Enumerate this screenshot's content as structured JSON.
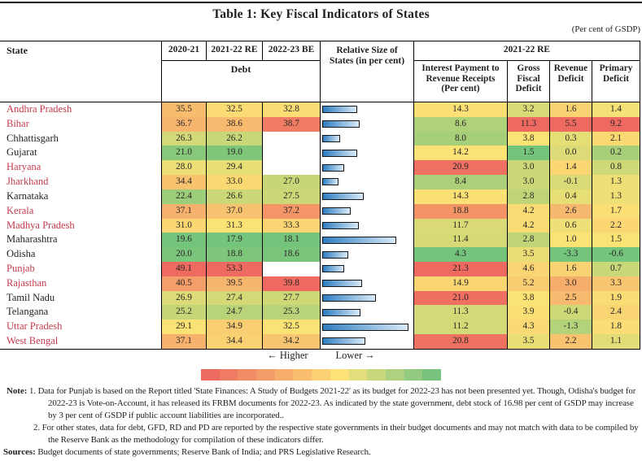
{
  "title": "Table 1: Key Fiscal Indicators of States",
  "unit_note": "(Per cent of GSDP)",
  "chart_data": {
    "type": "table",
    "title": "Table 1: Key Fiscal Indicators of States",
    "unit": "Per cent of GSDP",
    "header": {
      "state": "State",
      "years": [
        "2020-21",
        "2021-22 RE",
        "2022-23 BE"
      ],
      "debt": "Debt",
      "relative_size": "Relative Size of States (in per cent)",
      "group_2021_22": "2021-22 RE",
      "sub": [
        "Interest Payment to Revenue Receipts (Per cent)",
        "Gross Fiscal Deficit",
        "Revenue Deficit",
        "Primary Deficit"
      ]
    },
    "rows": [
      {
        "state": "Andhra Pradesh",
        "red_label": true,
        "debt_2020_21": 35.5,
        "debt_2021_22_re": 32.5,
        "debt_2022_23_be": 32.8,
        "relative_size": 4.8,
        "ip_rr": 14.3,
        "gfd": 3.2,
        "rd": 1.6,
        "pd": 1.4
      },
      {
        "state": "Bihar",
        "red_label": true,
        "debt_2020_21": 36.7,
        "debt_2021_22_re": 38.6,
        "debt_2022_23_be": 38.7,
        "relative_size": 5.1,
        "ip_rr": 8.6,
        "gfd": 11.3,
        "rd": 5.5,
        "pd": 9.2
      },
      {
        "state": "Chhattisgarh",
        "red_label": false,
        "debt_2020_21": 26.3,
        "debt_2021_22_re": 26.2,
        "debt_2022_23_be": null,
        "relative_size": 2.4,
        "ip_rr": 8.0,
        "gfd": 3.8,
        "rd": 0.3,
        "pd": 2.1
      },
      {
        "state": "Gujarat",
        "red_label": false,
        "debt_2020_21": 21.0,
        "debt_2021_22_re": 19.0,
        "debt_2022_23_be": null,
        "relative_size": 4.7,
        "ip_rr": 14.2,
        "gfd": 1.5,
        "rd": 0.0,
        "pd": 0.2
      },
      {
        "state": "Haryana",
        "red_label": true,
        "debt_2020_21": 28.0,
        "debt_2021_22_re": 29.4,
        "debt_2022_23_be": null,
        "relative_size": 3.0,
        "ip_rr": 20.9,
        "gfd": 3.0,
        "rd": 1.4,
        "pd": 0.8
      },
      {
        "state": "Jharkhand",
        "red_label": true,
        "debt_2020_21": 34.4,
        "debt_2021_22_re": 33.0,
        "debt_2022_23_be": 27.0,
        "relative_size": 2.2,
        "ip_rr": 8.4,
        "gfd": 3.0,
        "rd": -0.1,
        "pd": 1.3
      },
      {
        "state": "Karnataka",
        "red_label": false,
        "debt_2020_21": 22.4,
        "debt_2021_22_re": 26.6,
        "debt_2022_23_be": 27.5,
        "relative_size": 5.6,
        "ip_rr": 14.3,
        "gfd": 2.8,
        "rd": 0.4,
        "pd": 1.3
      },
      {
        "state": "Kerala",
        "red_label": true,
        "debt_2020_21": 37.1,
        "debt_2021_22_re": 37.0,
        "debt_2022_23_be": 37.2,
        "relative_size": 3.9,
        "ip_rr": 18.8,
        "gfd": 4.2,
        "rd": 2.6,
        "pd": 1.7
      },
      {
        "state": "Madhya Pradesh",
        "red_label": true,
        "debt_2020_21": 31.0,
        "debt_2021_22_re": 31.3,
        "debt_2022_23_be": 33.3,
        "relative_size": 5.0,
        "ip_rr": 11.7,
        "gfd": 4.2,
        "rd": 0.6,
        "pd": 2.2
      },
      {
        "state": "Maharashtra",
        "red_label": false,
        "debt_2020_21": 19.6,
        "debt_2021_22_re": 17.9,
        "debt_2022_23_be": 18.1,
        "relative_size": 10.0,
        "ip_rr": 11.4,
        "gfd": 2.8,
        "rd": 1.0,
        "pd": 1.5
      },
      {
        "state": "Odisha",
        "red_label": false,
        "debt_2020_21": 20.0,
        "debt_2021_22_re": 18.8,
        "debt_2022_23_be": 18.6,
        "relative_size": 3.5,
        "ip_rr": 4.3,
        "gfd": 3.5,
        "rd": -3.3,
        "pd": -0.6
      },
      {
        "state": "Punjab",
        "red_label": true,
        "debt_2020_21": 49.1,
        "debt_2021_22_re": 53.3,
        "debt_2022_23_be": null,
        "relative_size": 3.0,
        "ip_rr": 21.3,
        "gfd": 4.6,
        "rd": 1.6,
        "pd": 0.7
      },
      {
        "state": "Rajasthan",
        "red_label": true,
        "debt_2020_21": 40.5,
        "debt_2021_22_re": 39.5,
        "debt_2022_23_be": 39.8,
        "relative_size": 5.4,
        "ip_rr": 14.9,
        "gfd": 5.2,
        "rd": 3.0,
        "pd": 3.3
      },
      {
        "state": "Tamil Nadu",
        "red_label": false,
        "debt_2020_21": 26.9,
        "debt_2021_22_re": 27.4,
        "debt_2022_23_be": 27.7,
        "relative_size": 7.3,
        "ip_rr": 21.0,
        "gfd": 3.8,
        "rd": 2.5,
        "pd": 1.9
      },
      {
        "state": "Telangana",
        "red_label": false,
        "debt_2020_21": 25.2,
        "debt_2021_22_re": 24.7,
        "debt_2022_23_be": 25.3,
        "relative_size": 5.2,
        "ip_rr": 11.3,
        "gfd": 3.9,
        "rd": -0.4,
        "pd": 2.4
      },
      {
        "state": "Uttar Pradesh",
        "red_label": true,
        "debt_2020_21": 29.1,
        "debt_2021_22_re": 34.9,
        "debt_2022_23_be": 32.5,
        "relative_size": 11.7,
        "ip_rr": 11.2,
        "gfd": 4.3,
        "rd": -1.3,
        "pd": 1.8
      },
      {
        "state": "West Bengal",
        "red_label": true,
        "debt_2020_21": 37.1,
        "debt_2021_22_re": 34.4,
        "debt_2022_23_be": 34.2,
        "relative_size": 5.9,
        "ip_rr": 20.8,
        "gfd": 3.5,
        "rd": 2.2,
        "pd": 1.1
      }
    ],
    "bar_column": {
      "label": "Relative Size of States (in per cent)",
      "max_value": 11.7,
      "bar_color_left": "#2E7DC0",
      "bar_color_right": "#D9EAF8"
    },
    "heatmap": {
      "min_color": "#74C47C",
      "mid_color": "#FBE275",
      "max_color": "#EE6A60",
      "scale": "per-column 3-color scale: min=green, median=yellow, max=red"
    }
  },
  "legend": {
    "higher": "← Higher",
    "lower": "Lower →",
    "palette": [
      "#ED6A60",
      "#EF7B63",
      "#F28C66",
      "#F49D69",
      "#F7AE6C",
      "#F9BF6F",
      "#FBD173",
      "#FCE277",
      "#E3DE7B",
      "#C8D87D",
      "#ADD180",
      "#92CA7F",
      "#77C37D"
    ]
  },
  "notes": {
    "label": "Note:",
    "items": [
      "1. Data for Punjab is based on the Report titled 'State Finances: A Study of Budgets 2021-22' as its budget for 2022-23 has not been presented yet. Though, Odisha's budget for 2022-23 is Vote-on-Account, it has released its FRBM documents for 2022-23. As indicated by the state government, debt stock of 16.98 per cent of GSDP may increase by 3 per cent of GSDP if public account liabilities are incorporated..",
      "2. For other states, data for debt, GFD, RD and PD are reported by the respective state governments in their budget documents and may not match with data to be compiled by the Reserve Bank as the methodology for compilation of these indicators differ."
    ],
    "sources_label": "Sources:",
    "sources": "Budget documents of state governments; Reserve Bank of India; and PRS Legislative Research."
  }
}
